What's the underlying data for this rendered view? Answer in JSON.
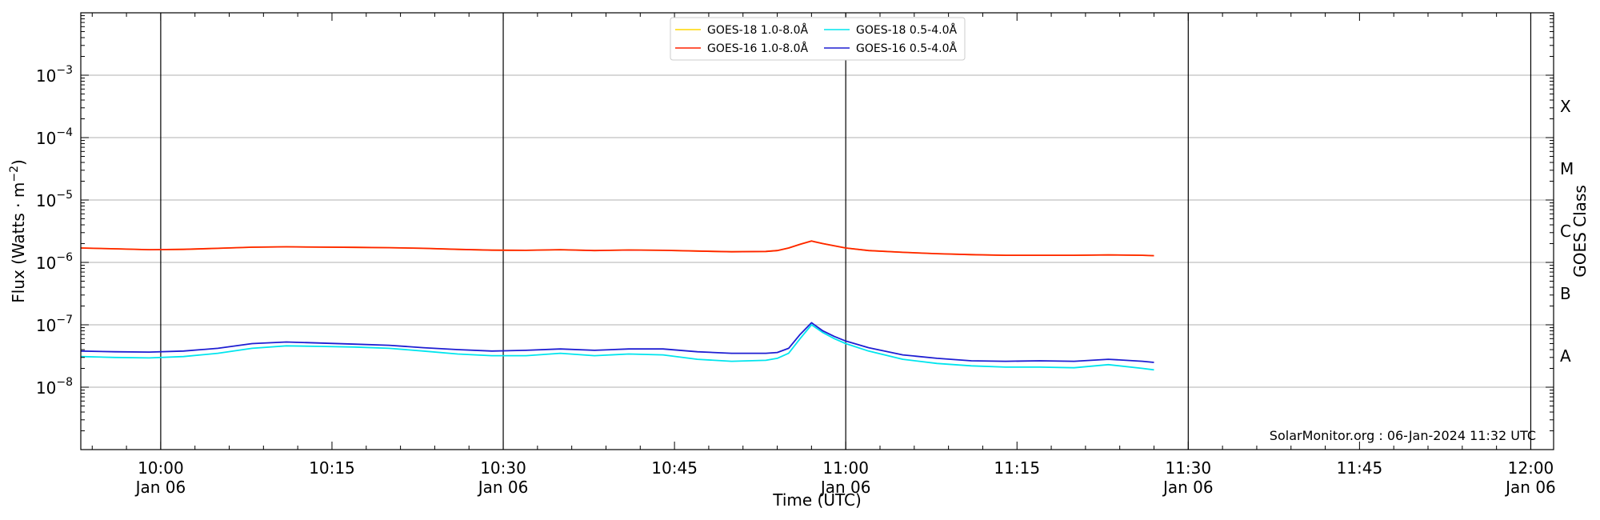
{
  "chart_data": {
    "type": "line",
    "xlabel": "Time (UTC)",
    "ylabel": "Flux (Watts · m",
    "ylabel_sup": "−2",
    "ylabel_close": ")",
    "y2label": "GOES Class",
    "y_scale": "log",
    "ylim": [
      1e-09,
      0.01
    ],
    "x_range": [
      "09:53",
      "12:02"
    ],
    "grid": "horizontal at decades",
    "legend_position": "top-center",
    "y_ticks": [
      {
        "value": 1e-08,
        "base": "10",
        "exp": "−8"
      },
      {
        "value": 1e-07,
        "base": "10",
        "exp": "−7"
      },
      {
        "value": 1e-06,
        "base": "10",
        "exp": "−6"
      },
      {
        "value": 1e-05,
        "base": "10",
        "exp": "−5"
      },
      {
        "value": 0.0001,
        "base": "10",
        "exp": "−4"
      },
      {
        "value": 0.001,
        "base": "10",
        "exp": "−3"
      }
    ],
    "x_ticks": [
      {
        "time": "10:00",
        "label": "10:00",
        "date": "Jan 06",
        "vline": true
      },
      {
        "time": "10:15",
        "label": "10:15",
        "date": "",
        "vline": false
      },
      {
        "time": "10:30",
        "label": "10:30",
        "date": "Jan 06",
        "vline": true
      },
      {
        "time": "10:45",
        "label": "10:45",
        "date": "",
        "vline": false
      },
      {
        "time": "11:00",
        "label": "11:00",
        "date": "Jan 06",
        "vline": true
      },
      {
        "time": "11:15",
        "label": "11:15",
        "date": "",
        "vline": false
      },
      {
        "time": "11:30",
        "label": "11:30",
        "date": "Jan 06",
        "vline": true
      },
      {
        "time": "11:45",
        "label": "11:45",
        "date": "",
        "vline": false
      },
      {
        "time": "12:00",
        "label": "12:00",
        "date": "Jan 06",
        "vline": true
      }
    ],
    "goes_classes": [
      {
        "label": "A",
        "value": 3.16e-08
      },
      {
        "label": "B",
        "value": 3.16e-07
      },
      {
        "label": "C",
        "value": 3.16e-06
      },
      {
        "label": "M",
        "value": 3.16e-05
      },
      {
        "label": "X",
        "value": 0.000316
      }
    ],
    "x": [
      "09:53",
      "09:56",
      "09:59",
      "10:02",
      "10:05",
      "10:08",
      "10:11",
      "10:14",
      "10:17",
      "10:20",
      "10:23",
      "10:26",
      "10:29",
      "10:32",
      "10:35",
      "10:38",
      "10:41",
      "10:44",
      "10:47",
      "10:50",
      "10:53",
      "10:54",
      "10:55",
      "10:56",
      "10:57",
      "10:58",
      "10:59",
      "11:00",
      "11:02",
      "11:05",
      "11:08",
      "11:11",
      "11:14",
      "11:17",
      "11:20",
      "11:23",
      "11:26",
      "11:27"
    ],
    "series": [
      {
        "name": "GOES-18 1.0-8.0Å",
        "color": "#ffd700",
        "values": [
          1.7e-06,
          1.65e-06,
          1.6e-06,
          1.62e-06,
          1.68e-06,
          1.75e-06,
          1.78e-06,
          1.76e-06,
          1.74e-06,
          1.72e-06,
          1.68e-06,
          1.62e-06,
          1.57e-06,
          1.56e-06,
          1.6e-06,
          1.55e-06,
          1.58e-06,
          1.56e-06,
          1.52e-06,
          1.48e-06,
          1.5e-06,
          1.55e-06,
          1.7e-06,
          1.95e-06,
          2.2e-06,
          2e-06,
          1.85e-06,
          1.7e-06,
          1.55e-06,
          1.45e-06,
          1.38e-06,
          1.33e-06,
          1.3e-06,
          1.3e-06,
          1.3e-06,
          1.32e-06,
          1.3e-06,
          1.28e-06
        ]
      },
      {
        "name": "GOES-16 1.0-8.0Å",
        "color": "#ff2200",
        "values": [
          1.7e-06,
          1.65e-06,
          1.6e-06,
          1.62e-06,
          1.68e-06,
          1.75e-06,
          1.78e-06,
          1.76e-06,
          1.74e-06,
          1.72e-06,
          1.68e-06,
          1.62e-06,
          1.57e-06,
          1.56e-06,
          1.6e-06,
          1.55e-06,
          1.58e-06,
          1.56e-06,
          1.52e-06,
          1.48e-06,
          1.5e-06,
          1.55e-06,
          1.7e-06,
          1.95e-06,
          2.2e-06,
          2e-06,
          1.85e-06,
          1.7e-06,
          1.55e-06,
          1.45e-06,
          1.38e-06,
          1.33e-06,
          1.3e-06,
          1.3e-06,
          1.3e-06,
          1.32e-06,
          1.3e-06,
          1.28e-06
        ]
      },
      {
        "name": "GOES-18 0.5-4.0Å",
        "color": "#00e5ee",
        "values": [
          3.1e-08,
          3e-08,
          2.95e-08,
          3.1e-08,
          3.5e-08,
          4.2e-08,
          4.6e-08,
          4.5e-08,
          4.4e-08,
          4.2e-08,
          3.8e-08,
          3.4e-08,
          3.2e-08,
          3.2e-08,
          3.5e-08,
          3.2e-08,
          3.4e-08,
          3.3e-08,
          2.8e-08,
          2.6e-08,
          2.7e-08,
          2.9e-08,
          3.5e-08,
          6e-08,
          1e-07,
          7.5e-08,
          6e-08,
          5e-08,
          3.8e-08,
          2.8e-08,
          2.4e-08,
          2.2e-08,
          2.1e-08,
          2.1e-08,
          2.05e-08,
          2.3e-08,
          2e-08,
          1.9e-08
        ]
      },
      {
        "name": "GOES-16 0.5-4.0Å",
        "color": "#1e1ed2",
        "values": [
          3.8e-08,
          3.7e-08,
          3.65e-08,
          3.8e-08,
          4.2e-08,
          5e-08,
          5.3e-08,
          5.1e-08,
          4.9e-08,
          4.7e-08,
          4.3e-08,
          4e-08,
          3.8e-08,
          3.9e-08,
          4.1e-08,
          3.9e-08,
          4.1e-08,
          4.1e-08,
          3.7e-08,
          3.5e-08,
          3.5e-08,
          3.6e-08,
          4.2e-08,
          7e-08,
          1.08e-07,
          8e-08,
          6.5e-08,
          5.5e-08,
          4.3e-08,
          3.3e-08,
          2.9e-08,
          2.65e-08,
          2.6e-08,
          2.65e-08,
          2.6e-08,
          2.8e-08,
          2.6e-08,
          2.5e-08
        ]
      }
    ],
    "credit": "SolarMonitor.org : 06-Jan-2024 11:32 UTC"
  }
}
